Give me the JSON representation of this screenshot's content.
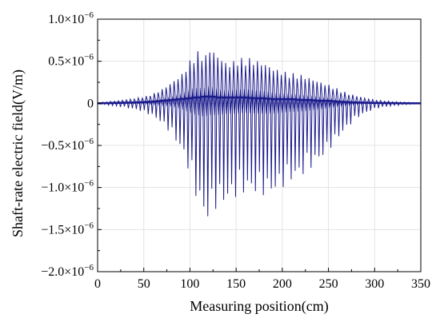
{
  "colors": {
    "series": "#1a1a8c",
    "grid": "#e3e3e3",
    "axis": "#000000",
    "background": "#ffffff"
  },
  "chart_data": {
    "type": "line",
    "xlabel": "Measuring position(cm)",
    "ylabel": "Shaft-rate electric field(V/m)",
    "xlim": [
      0,
      350
    ],
    "ylim": [
      -2e-06,
      1e-06
    ],
    "grid": true,
    "x_ticks": [
      {
        "value": 0,
        "label": "0"
      },
      {
        "value": 50,
        "label": "50"
      },
      {
        "value": 100,
        "label": "100"
      },
      {
        "value": 150,
        "label": "150"
      },
      {
        "value": 200,
        "label": "200"
      },
      {
        "value": 250,
        "label": "250"
      },
      {
        "value": 300,
        "label": "300"
      },
      {
        "value": 350,
        "label": "350"
      }
    ],
    "y_ticks": [
      {
        "value": 1e-06,
        "mantissa": "1.0",
        "suffix": "×10",
        "exponent": "−6"
      },
      {
        "value": 5e-07,
        "mantissa": "0.5",
        "suffix": "×10",
        "exponent": "−6"
      },
      {
        "value": 0,
        "mantissa": "0",
        "suffix": "",
        "exponent": ""
      },
      {
        "value": -5e-07,
        "mantissa": "−0.5",
        "suffix": "×10",
        "exponent": "−6"
      },
      {
        "value": -1e-06,
        "mantissa": "−1.0",
        "suffix": "×10",
        "exponent": "−6"
      },
      {
        "value": -1.5e-06,
        "mantissa": "−1.5",
        "suffix": "×10",
        "exponent": "−6"
      },
      {
        "value": -2e-06,
        "mantissa": "−2.0",
        "suffix": "×10",
        "exponent": "−6"
      }
    ],
    "series": [
      {
        "style": "oscillating spikes",
        "x": [
          0,
          20,
          40,
          50,
          60,
          70,
          80,
          90,
          100,
          105,
          110,
          115,
          120,
          125,
          130,
          140,
          150,
          160,
          170,
          180,
          190,
          200,
          210,
          220,
          230,
          240,
          250,
          260,
          270,
          280,
          290,
          300,
          310,
          320,
          330,
          340,
          350
        ],
        "y_max": [
          1e-08,
          3e-08,
          6e-08,
          8e-08,
          1.2e-07,
          1.8e-07,
          2.6e-07,
          3.5e-07,
          5.3e-07,
          6.2e-07,
          6.2e-07,
          5.5e-07,
          6.8e-07,
          6.2e-07,
          5.7e-07,
          4.7e-07,
          5.3e-07,
          5.5e-07,
          5.2e-07,
          4.8e-07,
          4.2e-07,
          3.8e-07,
          3.6e-07,
          3.4e-07,
          3e-07,
          2.6e-07,
          2.2e-07,
          1.7e-07,
          1.2e-07,
          9e-08,
          6e-08,
          4e-08,
          3e-08,
          2e-08,
          1.5e-08,
          1e-08,
          5e-09
        ],
        "y_min": [
          -1e-08,
          -4e-08,
          -8e-08,
          -1.2e-07,
          -1.8e-07,
          -2.8e-07,
          -4.2e-07,
          -6.2e-07,
          -9.8e-07,
          -1.18e-06,
          -1.28e-06,
          -1.43e-06,
          -1.3e-06,
          -1.25e-06,
          -1.22e-06,
          -1.15e-06,
          -1.1e-06,
          -1.05e-06,
          -1.08e-06,
          -1.1e-06,
          -1.05e-06,
          -9.8e-07,
          -9e-07,
          -8.5e-07,
          -7.5e-07,
          -6.5e-07,
          -5.2e-07,
          -3.8e-07,
          -2.6e-07,
          -1.6e-07,
          -1e-07,
          -6e-08,
          -4e-08,
          -2.5e-08,
          -1.5e-08,
          -1e-08,
          -5e-09
        ],
        "centerline": [
          0,
          5e-09,
          1e-08,
          1.5e-08,
          2e-08,
          3e-08,
          4e-08,
          5e-08,
          6e-08,
          7e-08,
          7e-08,
          8e-08,
          8e-08,
          8e-08,
          7e-08,
          7e-08,
          7e-08,
          7e-08,
          6e-08,
          6e-08,
          5e-08,
          5e-08,
          5e-08,
          4e-08,
          4e-08,
          3e-08,
          3e-08,
          2e-08,
          1.5e-08,
          1e-08,
          8e-09,
          5e-09,
          3e-09,
          2e-09,
          1e-09,
          1e-09,
          0
        ]
      }
    ]
  }
}
